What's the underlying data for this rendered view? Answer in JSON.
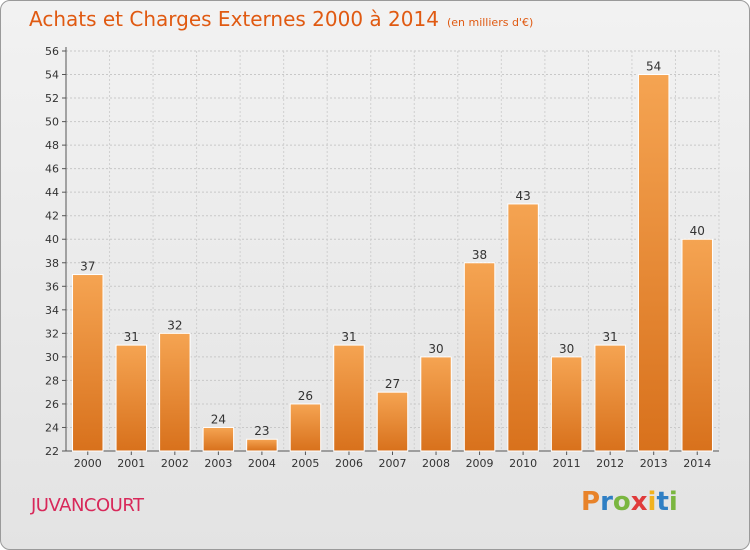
{
  "chart_data": {
    "type": "bar",
    "title": "Achats et Charges Externes 2000 à 2014",
    "subtitle": "(en milliers d'€)",
    "xlabel": "",
    "ylabel": "",
    "categories": [
      "2000",
      "2001",
      "2002",
      "2003",
      "2004",
      "2005",
      "2006",
      "2007",
      "2008",
      "2009",
      "2010",
      "2011",
      "2012",
      "2013",
      "2014"
    ],
    "values": [
      37,
      31,
      32,
      24,
      23,
      26,
      31,
      27,
      30,
      38,
      43,
      30,
      31,
      54,
      40
    ],
    "ylim": [
      22,
      56
    ],
    "yticks": [
      22,
      24,
      26,
      28,
      30,
      32,
      34,
      36,
      38,
      40,
      42,
      44,
      46,
      48,
      50,
      52,
      54,
      56
    ],
    "grid": true,
    "bar_color": "#f0902e"
  },
  "footer": {
    "place": "JUVANCOURT",
    "logo": [
      "P",
      "r",
      "o",
      "x",
      "i",
      "t",
      "i"
    ],
    "logo_colors": [
      "#e8832a",
      "#2f7fc4",
      "#7ab640",
      "#e03a3a",
      "#f1b21e",
      "#2f7fc4",
      "#7ab640"
    ]
  }
}
